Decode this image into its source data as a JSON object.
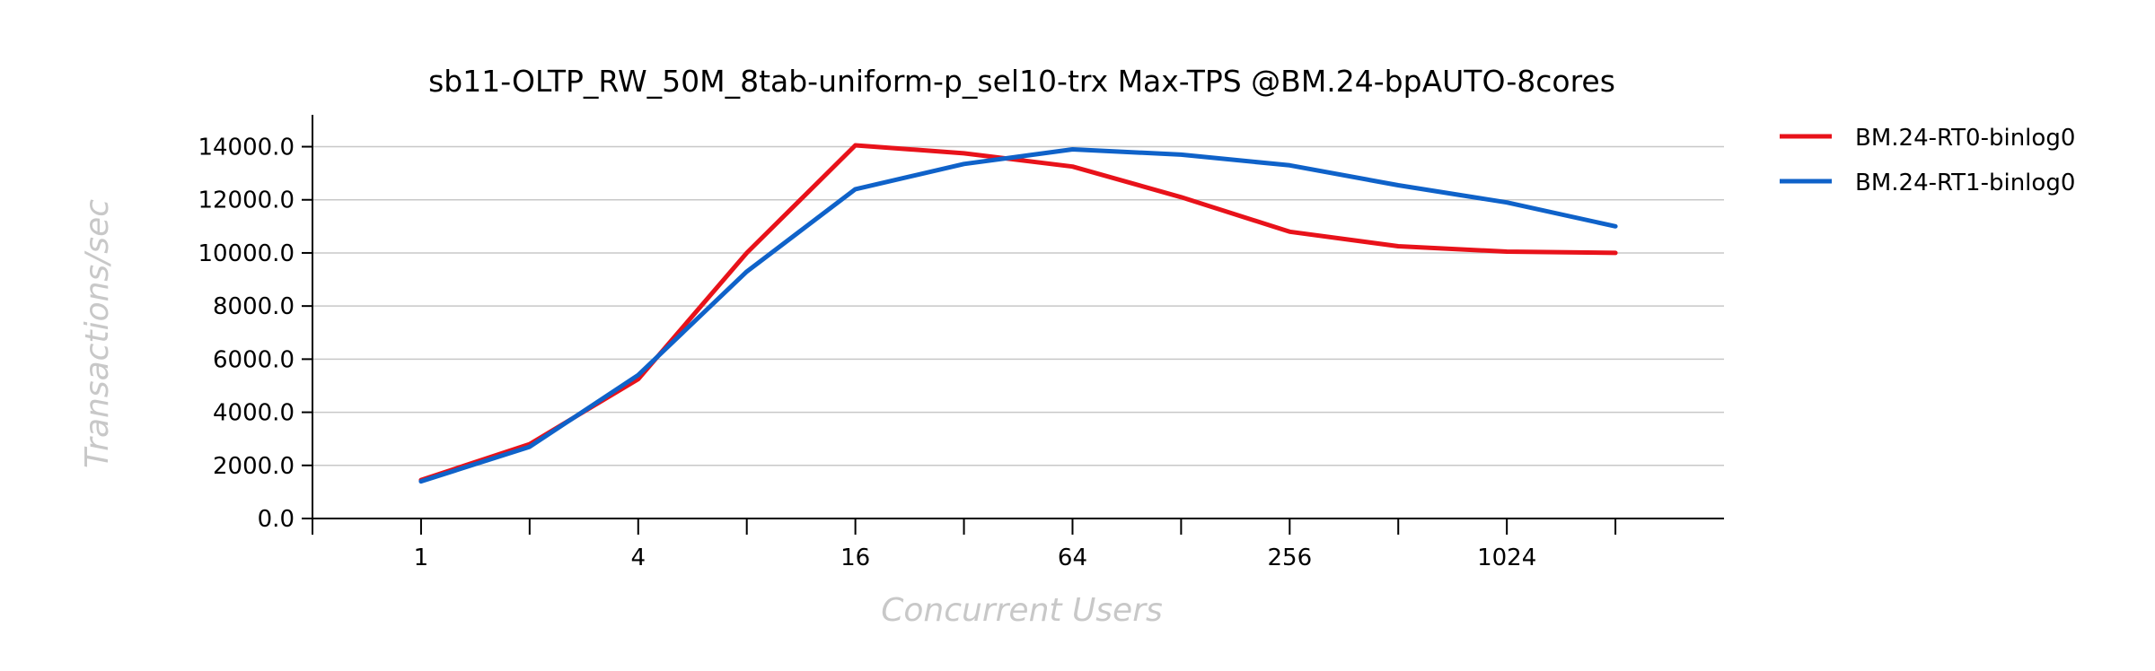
{
  "chart_data": {
    "type": "line",
    "title": "sb11-OLTP_RW_50M_8tab-uniform-p_sel10-trx Max-TPS @BM.24-bpAUTO-8cores",
    "xlabel": "Concurrent Users",
    "ylabel": "Transactions/sec",
    "x": [
      1,
      2,
      4,
      8,
      16,
      32,
      64,
      128,
      256,
      512,
      1024,
      2048
    ],
    "x_scale": "log2",
    "x_tick_labels": [
      "1",
      "4",
      "16",
      "64",
      "256",
      "1024"
    ],
    "x_tick_values": [
      1,
      4,
      16,
      64,
      256,
      1024
    ],
    "ylim": [
      0,
      14000
    ],
    "y_ticks": [
      0,
      2000,
      4000,
      6000,
      8000,
      10000,
      12000,
      14000
    ],
    "y_tick_labels": [
      "0.0",
      "2000.0",
      "4000.0",
      "6000.0",
      "8000.0",
      "10000.0",
      "12000.0",
      "14000.0"
    ],
    "grid": "horizontal",
    "legend_position": "top-right",
    "series": [
      {
        "name": "BM.24-RT0-binlog0",
        "color": "#e8121a",
        "values": [
          1450,
          2800,
          5250,
          10000,
          14050,
          13750,
          13250,
          12100,
          10800,
          10250,
          10050,
          10000
        ]
      },
      {
        "name": "BM.24-RT1-binlog0",
        "color": "#0f62c9",
        "values": [
          1400,
          2700,
          5400,
          9300,
          12400,
          13350,
          13900,
          13700,
          13300,
          12550,
          11900,
          11000
        ]
      }
    ]
  }
}
